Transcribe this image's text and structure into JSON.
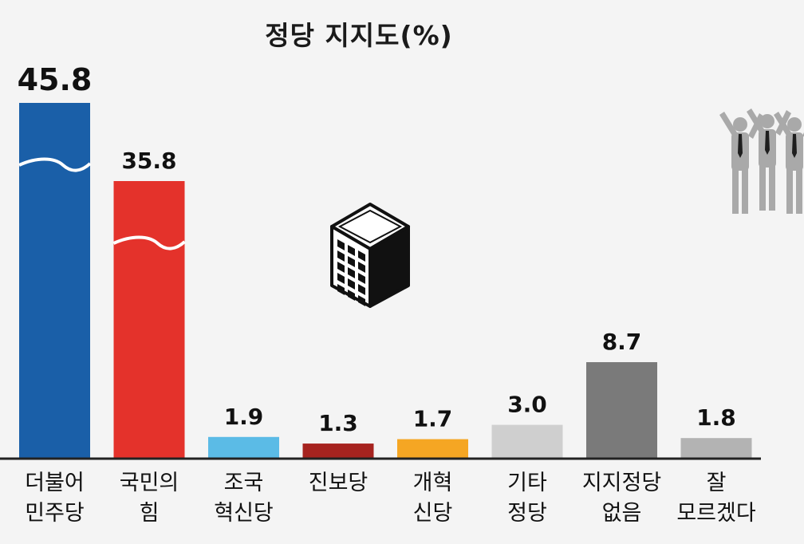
{
  "chart_data": {
    "type": "bar",
    "title": "정당 지지도(%)",
    "categories": [
      [
        "더불어",
        "민주당"
      ],
      [
        "국민의",
        "힘"
      ],
      [
        "조국",
        "혁신당"
      ],
      [
        "진보당"
      ],
      [
        "개혁",
        "신당"
      ],
      [
        "기타",
        "정당"
      ],
      [
        "지지정당",
        "없음"
      ],
      [
        "잘",
        "모르겠다"
      ]
    ],
    "value_labels": [
      "45.8",
      "35.8",
      "1.9",
      "1.3",
      "1.7",
      "3.0",
      "8.7",
      "1.8"
    ],
    "values": [
      45.8,
      35.8,
      1.9,
      1.3,
      1.7,
      3.0,
      8.7,
      1.8
    ],
    "colors": [
      "#1a5fa8",
      "#e4322b",
      "#5bbbe6",
      "#a6231f",
      "#f5a623",
      "#cfcfcf",
      "#7a7a7a",
      "#b3b3b3"
    ],
    "axis_break": [
      true,
      true,
      false,
      false,
      false,
      false,
      false,
      false
    ],
    "grid": false,
    "legend": "none"
  },
  "icons": [
    "office-building-icon",
    "cheering-people-icon"
  ]
}
